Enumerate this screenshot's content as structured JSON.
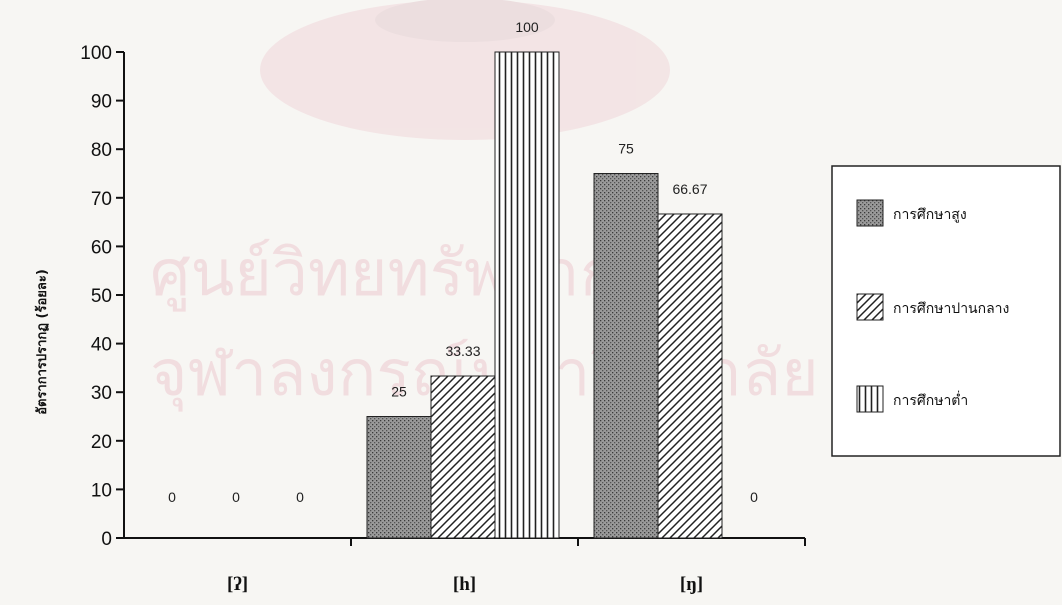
{
  "chart_data": {
    "type": "bar",
    "title": "",
    "xlabel": "",
    "ylabel": "อัตราการปรากฏ (ร้อยละ)",
    "ylim": [
      0,
      100
    ],
    "yticks": [
      0,
      10,
      20,
      30,
      40,
      50,
      60,
      70,
      80,
      90,
      100
    ],
    "categories": [
      "[ʔ]",
      "[h]",
      "[ŋ]"
    ],
    "series": [
      {
        "name": "การศึกษาสูง",
        "values": [
          0,
          25,
          75
        ],
        "labels": [
          "0",
          "25",
          "75"
        ],
        "pattern": "dotted"
      },
      {
        "name": "การศึกษาปานกลาง",
        "values": [
          0,
          33.33,
          66.67
        ],
        "labels": [
          "0",
          "33.33",
          "66.67"
        ],
        "pattern": "diagonal"
      },
      {
        "name": "การศึกษาต่ำ",
        "values": [
          0,
          100,
          0
        ],
        "labels": [
          "0",
          "100",
          "0"
        ],
        "pattern": "vertical"
      }
    ],
    "legend_position": "right",
    "grid": false
  },
  "watermark": {
    "lines": [
      "ศูนย์วิทยทรัพยากร",
      "จุฬาลงกรณ์มหาวิทยาลัย"
    ]
  }
}
